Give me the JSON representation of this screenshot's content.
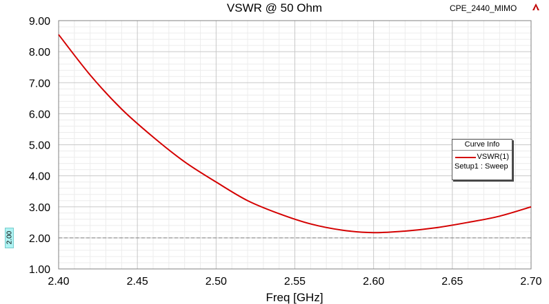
{
  "header": {
    "project": "CPE_2440_MIMO"
  },
  "colors": {
    "curve": "#d40000",
    "reference_line": "#808080",
    "grid": "#c8c8c8",
    "marker_bg": "#aef3f3"
  },
  "legend": {
    "title": "Curve Info",
    "entry": "VSWR(1)",
    "setup": "Setup1 : Sweep"
  },
  "marker_label": "2.00",
  "chart_data": {
    "type": "line",
    "title": "VSWR @ 50 Ohm",
    "xlabel": "Freq [GHz]",
    "ylabel": "",
    "xlim": [
      2.4,
      2.7
    ],
    "ylim": [
      1.0,
      9.0
    ],
    "xticks": [
      "2.40",
      "2.45",
      "2.50",
      "2.55",
      "2.60",
      "2.65",
      "2.70"
    ],
    "yticks": [
      "1.00",
      "2.00",
      "3.00",
      "4.00",
      "5.00",
      "6.00",
      "7.00",
      "8.00",
      "9.00"
    ],
    "grid": true,
    "legend_position": "right",
    "reference_line": {
      "y": 2.0
    },
    "series": [
      {
        "name": "VSWR(1)",
        "x": [
          2.4,
          2.42,
          2.44,
          2.46,
          2.48,
          2.5,
          2.52,
          2.54,
          2.56,
          2.58,
          2.6,
          2.62,
          2.64,
          2.66,
          2.68,
          2.7
        ],
        "y": [
          8.55,
          7.25,
          6.15,
          5.25,
          4.45,
          3.8,
          3.2,
          2.78,
          2.45,
          2.25,
          2.17,
          2.22,
          2.33,
          2.5,
          2.7,
          3.0
        ]
      }
    ]
  }
}
